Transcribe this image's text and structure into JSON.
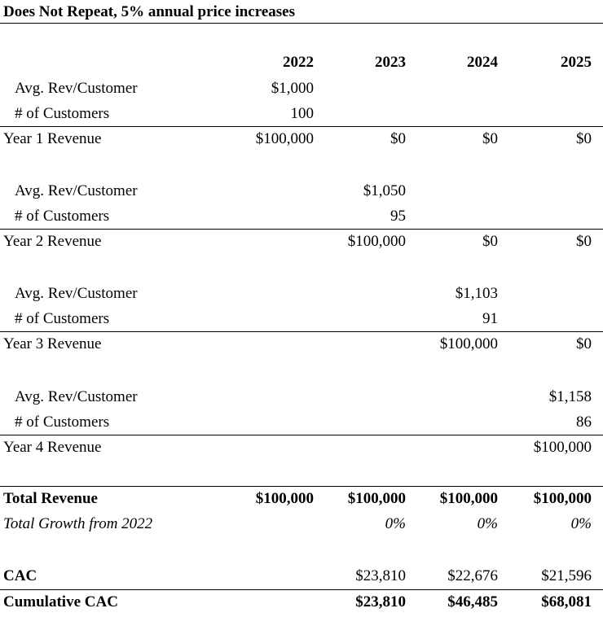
{
  "title": "Does Not Repeat, 5% annual price increases",
  "years": [
    "2022",
    "2023",
    "2024",
    "2025"
  ],
  "blocks": [
    {
      "avg_label": "Avg. Rev/Customer",
      "avg_values": [
        "$1,000",
        "",
        "",
        ""
      ],
      "cust_label": "# of Customers",
      "cust_values": [
        "100",
        "",
        "",
        ""
      ],
      "rev_label": "Year 1 Revenue",
      "rev_values": [
        "$100,000",
        "$0",
        "$0",
        "$0"
      ]
    },
    {
      "avg_label": "Avg. Rev/Customer",
      "avg_values": [
        "",
        "$1,050",
        "",
        ""
      ],
      "cust_label": "# of Customers",
      "cust_values": [
        "",
        "95",
        "",
        ""
      ],
      "rev_label": "Year 2 Revenue",
      "rev_values": [
        "",
        "$100,000",
        "$0",
        "$0"
      ]
    },
    {
      "avg_label": "Avg. Rev/Customer",
      "avg_values": [
        "",
        "",
        "$1,103",
        ""
      ],
      "cust_label": "# of Customers",
      "cust_values": [
        "",
        "",
        "91",
        ""
      ],
      "rev_label": "Year 3 Revenue",
      "rev_values": [
        "",
        "",
        "$100,000",
        "$0"
      ]
    },
    {
      "avg_label": "Avg. Rev/Customer",
      "avg_values": [
        "",
        "",
        "",
        "$1,158"
      ],
      "cust_label": "# of Customers",
      "cust_values": [
        "",
        "",
        "",
        "86"
      ],
      "rev_label": "Year 4 Revenue",
      "rev_values": [
        "",
        "",
        "",
        "$100,000"
      ]
    }
  ],
  "total_revenue": {
    "label": "Total Revenue",
    "values": [
      "$100,000",
      "$100,000",
      "$100,000",
      "$100,000"
    ]
  },
  "total_growth": {
    "label": "Total Growth from 2022",
    "values": [
      "",
      "0%",
      "0%",
      "0%"
    ]
  },
  "cac": {
    "label": "CAC",
    "values": [
      "",
      "$23,810",
      "$22,676",
      "$21,596"
    ]
  },
  "cumulative_cac": {
    "label": "Cumulative CAC",
    "values": [
      "",
      "$23,810",
      "$46,485",
      "$68,081"
    ]
  }
}
